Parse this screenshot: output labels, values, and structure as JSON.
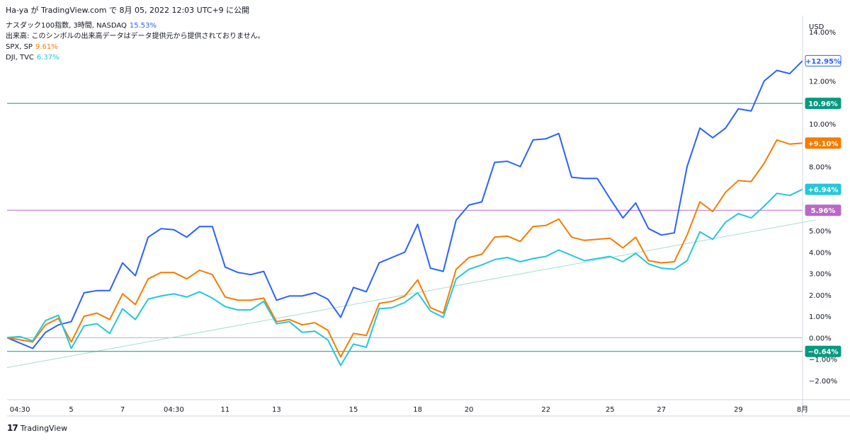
{
  "header": {
    "publish_text": "Ha-ya が TradingView.com で 8月 05, 2022 12:03 UTC+9 に公開"
  },
  "legend": {
    "rows": [
      {
        "label": "ナスダック100指数, 3時間, NASDAQ",
        "value": "15.53%",
        "color": "#2962ff"
      },
      {
        "label": "出来高: このシンボルの出来高データはデータ提供元から提供されておりません。",
        "value": "",
        "color": "#131722"
      },
      {
        "label": "SPX, SP",
        "value": "9.61%",
        "color": "#f57c00"
      },
      {
        "label": "DJI, TVC",
        "value": "6.37%",
        "color": "#26c6da"
      }
    ]
  },
  "footer": {
    "brand": "TradingView",
    "logo_glyph": "17"
  },
  "chart_data": {
    "type": "line",
    "y_unit_label": "USD",
    "ylim": [
      -2.9,
      14.8
    ],
    "y_ticks": [
      -2,
      -1,
      0,
      1,
      2,
      3,
      4,
      5,
      8,
      10,
      12
    ],
    "y_tick_labels": [
      "−2.00%",
      "−1.00%",
      "0.00%",
      "1.00%",
      "2.00%",
      "3.00%",
      "4.00%",
      "5.00%",
      "8.00%",
      "10.00%",
      "12.00%"
    ],
    "top_partial_label": "14.00%",
    "x_labels": [
      {
        "i": 1,
        "label": "04:30"
      },
      {
        "i": 5,
        "label": "5"
      },
      {
        "i": 9,
        "label": "7"
      },
      {
        "i": 13,
        "label": "04:30"
      },
      {
        "i": 17,
        "label": "11"
      },
      {
        "i": 21,
        "label": "13"
      },
      {
        "i": 27,
        "label": "15"
      },
      {
        "i": 32,
        "label": "18"
      },
      {
        "i": 36,
        "label": "20"
      },
      {
        "i": 42,
        "label": "22"
      },
      {
        "i": 47,
        "label": "25"
      },
      {
        "i": 51,
        "label": "27"
      },
      {
        "i": 57,
        "label": "29"
      },
      {
        "i": 62,
        "label": "8月"
      }
    ],
    "x_count": 63,
    "series": [
      {
        "name": "ナスダック100指数",
        "color": "#2962ff",
        "values": [
          0,
          -0.25,
          -0.5,
          0.25,
          0.6,
          0.75,
          2.1,
          2.2,
          2.2,
          3.5,
          2.9,
          4.7,
          5.1,
          5.05,
          4.7,
          5.2,
          5.2,
          3.3,
          3.05,
          2.95,
          3.1,
          1.75,
          1.95,
          1.95,
          2.1,
          1.8,
          0.95,
          2.35,
          2.15,
          3.5,
          3.75,
          4.0,
          5.3,
          3.25,
          3.1,
          5.5,
          6.2,
          6.35,
          8.2,
          8.25,
          8.0,
          9.25,
          9.3,
          9.55,
          7.5,
          7.45,
          7.45,
          6.5,
          5.6,
          6.3,
          5.1,
          4.8,
          4.9,
          8.0,
          9.8,
          9.35,
          9.8,
          10.7,
          10.6,
          12.0,
          12.5,
          12.35,
          12.95
        ]
      },
      {
        "name": "SPX",
        "color": "#f57c00",
        "values": [
          0,
          -0.1,
          -0.2,
          0.6,
          0.9,
          -0.2,
          1.0,
          1.15,
          0.85,
          2.05,
          1.55,
          2.75,
          3.05,
          3.05,
          2.75,
          3.15,
          2.95,
          1.9,
          1.75,
          1.75,
          1.85,
          0.75,
          0.85,
          0.6,
          0.7,
          0.35,
          -0.9,
          0.2,
          0.1,
          1.6,
          1.7,
          1.95,
          2.7,
          1.4,
          1.15,
          3.2,
          3.75,
          3.9,
          4.7,
          4.75,
          4.5,
          5.2,
          5.25,
          5.55,
          4.7,
          4.55,
          4.6,
          4.65,
          4.2,
          4.7,
          3.6,
          3.5,
          3.55,
          4.8,
          6.35,
          5.9,
          6.8,
          7.35,
          7.3,
          8.15,
          9.25,
          9.05,
          9.1
        ]
      },
      {
        "name": "DJI",
        "color": "#26c6da",
        "values": [
          0,
          0.05,
          -0.15,
          0.8,
          1.05,
          -0.5,
          0.55,
          0.65,
          0.2,
          1.35,
          0.85,
          1.8,
          1.95,
          2.05,
          1.9,
          2.15,
          1.85,
          1.45,
          1.3,
          1.3,
          1.7,
          0.65,
          0.75,
          0.25,
          0.3,
          -0.1,
          -1.3,
          -0.3,
          -0.45,
          1.35,
          1.4,
          1.65,
          2.1,
          1.25,
          0.95,
          2.75,
          3.2,
          3.4,
          3.65,
          3.75,
          3.55,
          3.7,
          3.8,
          4.1,
          3.85,
          3.6,
          3.7,
          3.8,
          3.55,
          3.95,
          3.45,
          3.25,
          3.2,
          3.6,
          4.95,
          4.6,
          5.4,
          5.8,
          5.6,
          6.15,
          6.75,
          6.65,
          6.94
        ]
      }
    ],
    "horizontal_lines": [
      {
        "value": 10.96,
        "color": "#089981"
      },
      {
        "value": 5.96,
        "color": "#ba68c8"
      },
      {
        "value": -0.64,
        "color": "#089981"
      }
    ],
    "trend_line": {
      "from": {
        "i": 0,
        "value": -1.4
      },
      "to": {
        "i": 63,
        "value": 5.5
      },
      "color": "#a5dcd2"
    },
    "price_badges": [
      {
        "value": 12.95,
        "text": "+12.95%",
        "style": "outline",
        "color": "#2962ff"
      },
      {
        "value": 10.96,
        "text": "10.96%",
        "style": "fill",
        "color": "#089981"
      },
      {
        "value": 9.1,
        "text": "+9.10%",
        "style": "fill",
        "color": "#f57c00"
      },
      {
        "value": 6.94,
        "text": "+6.94%",
        "style": "fill",
        "color": "#26c6da"
      },
      {
        "value": 5.96,
        "text": "5.96%",
        "style": "fill",
        "color": "#ba68c8"
      },
      {
        "value": -0.64,
        "text": "−0.64%",
        "style": "fill",
        "color": "#089981"
      }
    ],
    "grid": false
  }
}
